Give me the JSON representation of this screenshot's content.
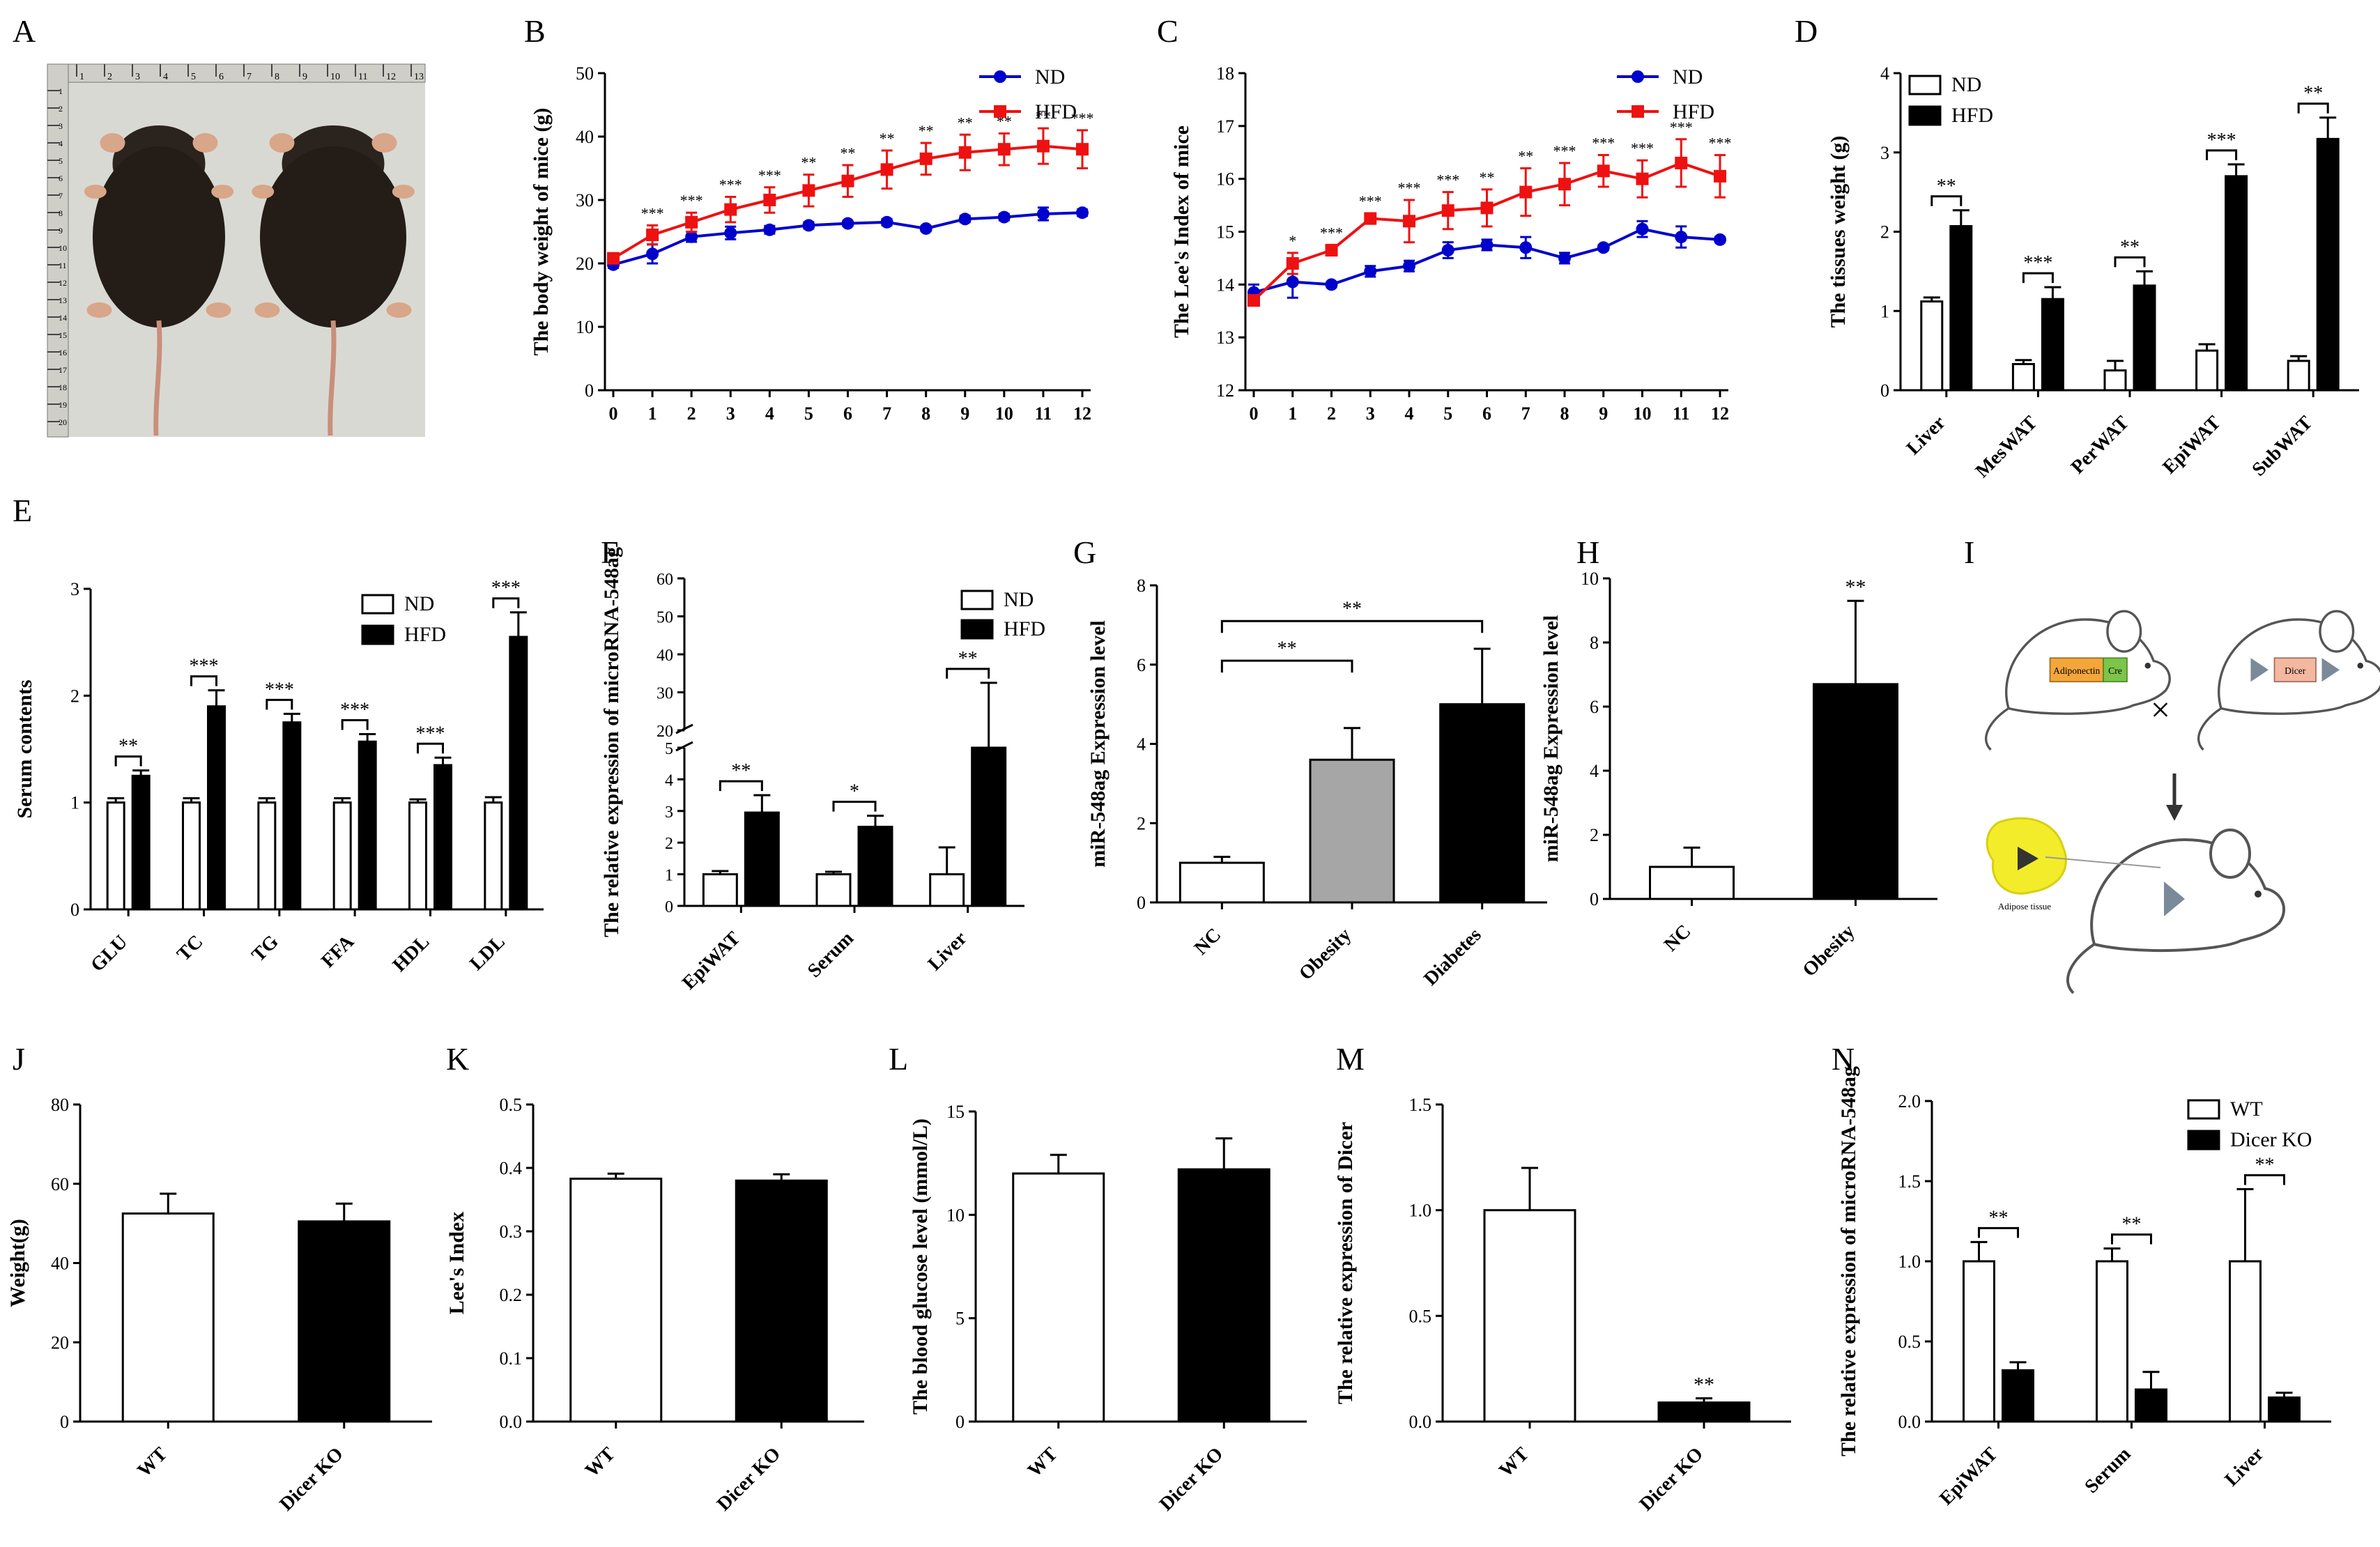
{
  "panel_letters": [
    "A",
    "B",
    "C",
    "D",
    "E",
    "F",
    "G",
    "H",
    "I",
    "J",
    "K",
    "L",
    "M",
    "N"
  ],
  "colors": {
    "nd": "#0000cc",
    "hfd": "#ee1111",
    "black": "#000000",
    "white": "#ffffff",
    "gray": "#a6a6a6"
  },
  "photo": {
    "ruler_left": [
      "1",
      "2",
      "3",
      "4",
      "5",
      "6",
      "7",
      "8",
      "9",
      "10",
      "11",
      "12",
      "13",
      "14",
      "15",
      "16",
      "17",
      "18",
      "19",
      "20"
    ],
    "ruler_top": [
      "1",
      "2",
      "3",
      "4",
      "5",
      "6",
      "7",
      "8",
      "9",
      "10",
      "11",
      "12",
      "13"
    ]
  },
  "schematic": {
    "transgene_a": "Adiponectin",
    "transgene_b": "Cre",
    "floxed_gene": "Dicer",
    "cross_symbol": "×",
    "tissue_label": "Adipose tissue"
  },
  "chart_data": [
    {
      "panel": "B",
      "type": "line",
      "x": [
        0,
        1,
        2,
        3,
        4,
        5,
        6,
        7,
        8,
        9,
        10,
        11,
        12
      ],
      "xticks": [
        "0",
        "1",
        "2",
        "3",
        "4",
        "5",
        "6",
        "7",
        "8",
        "9",
        "10",
        "11",
        "12"
      ],
      "ylabel": "The body weight of mice (g)",
      "ylim": [
        0,
        50
      ],
      "yticks": [
        "0",
        "10",
        "20",
        "30",
        "40",
        "50"
      ],
      "series": [
        {
          "name": "ND",
          "values": [
            19.8,
            21.5,
            24.2,
            24.8,
            25.3,
            26,
            26.3,
            26.5,
            25.5,
            27,
            27.3,
            27.8,
            28
          ],
          "errors": [
            0.5,
            1.5,
            0.8,
            1,
            0.6,
            0.5,
            0.4,
            0.5,
            0.4,
            0.5,
            0.5,
            1,
            0.5
          ]
        },
        {
          "name": "HFD",
          "values": [
            20.8,
            24.5,
            26.5,
            28.5,
            30,
            31.5,
            33,
            34.8,
            36.5,
            37.5,
            38,
            38.5,
            38
          ],
          "errors": [
            0.5,
            1.5,
            1.5,
            2,
            2,
            2.5,
            2.5,
            3,
            2.5,
            2.8,
            2.5,
            2.8,
            3
          ]
        }
      ],
      "annotations": [
        "",
        "***",
        "***",
        "***",
        "***",
        "**",
        "**",
        "**",
        "**",
        "**",
        "**",
        "**",
        "***"
      ]
    },
    {
      "panel": "C",
      "type": "line",
      "x": [
        0,
        1,
        2,
        3,
        4,
        5,
        6,
        7,
        8,
        9,
        10,
        11,
        12
      ],
      "xticks": [
        "0",
        "1",
        "2",
        "3",
        "4",
        "5",
        "6",
        "7",
        "8",
        "9",
        "10",
        "11",
        "12"
      ],
      "ylabel": "The Lee's Index of mice",
      "ylim": [
        12,
        18
      ],
      "yticks": [
        "12",
        "13",
        "14",
        "15",
        "16",
        "17",
        "18"
      ],
      "series": [
        {
          "name": "ND",
          "values": [
            13.85,
            14.05,
            14.0,
            14.25,
            14.35,
            14.65,
            14.75,
            14.7,
            14.5,
            14.7,
            15.05,
            14.9,
            14.85
          ],
          "errors": [
            0.15,
            0.3,
            0.05,
            0.1,
            0.1,
            0.15,
            0.1,
            0.2,
            0.1,
            0.05,
            0.15,
            0.2,
            0.05
          ]
        },
        {
          "name": "HFD",
          "values": [
            13.7,
            14.4,
            14.65,
            15.25,
            15.2,
            15.4,
            15.45,
            15.75,
            15.9,
            16.15,
            16.0,
            16.3,
            16.05
          ],
          "errors": [
            0.1,
            0.2,
            0.1,
            0.1,
            0.4,
            0.35,
            0.35,
            0.45,
            0.4,
            0.3,
            0.35,
            0.45,
            0.4
          ]
        }
      ],
      "annotations": [
        "",
        "*",
        "***",
        "***",
        "***",
        "***",
        "**",
        "**",
        "***",
        "***",
        "***",
        "***",
        "***"
      ]
    },
    {
      "panel": "D",
      "type": "bar",
      "categories": [
        "Liver",
        "MesWAT",
        "PerWAT",
        "EpiWAT",
        "SubWAT"
      ],
      "ylabel": "The tissues weight (g)",
      "ylim": [
        0,
        4
      ],
      "yticks": [
        "0",
        "1",
        "2",
        "3",
        "4"
      ],
      "series": [
        {
          "name": "ND",
          "values": [
            1.12,
            0.33,
            0.25,
            0.5,
            0.37
          ],
          "errors": [
            0.05,
            0.05,
            0.12,
            0.08,
            0.06
          ]
        },
        {
          "name": "HFD",
          "values": [
            2.07,
            1.15,
            1.32,
            2.7,
            3.17
          ],
          "errors": [
            0.2,
            0.15,
            0.18,
            0.15,
            0.27
          ]
        }
      ],
      "annotations": [
        "**",
        "***",
        "**",
        "***",
        "**"
      ]
    },
    {
      "panel": "E",
      "type": "bar",
      "categories": [
        "GLU",
        "TC",
        "TG",
        "FFA",
        "HDL",
        "LDL"
      ],
      "ylabel": "Serum contents",
      "ylim": [
        0,
        3
      ],
      "yticks": [
        "0",
        "1",
        "2",
        "3"
      ],
      "series": [
        {
          "name": "ND",
          "values": [
            1,
            1,
            1,
            1,
            1,
            1
          ],
          "errors": [
            0.04,
            0.04,
            0.04,
            0.04,
            0.03,
            0.05
          ]
        },
        {
          "name": "HFD",
          "values": [
            1.25,
            1.9,
            1.75,
            1.57,
            1.35,
            2.55
          ],
          "errors": [
            0.05,
            0.15,
            0.08,
            0.07,
            0.07,
            0.23
          ]
        }
      ],
      "annotations": [
        "**",
        "***",
        "***",
        "***",
        "***",
        "***"
      ]
    },
    {
      "panel": "F",
      "type": "bar",
      "categories": [
        "EpiWAT",
        "Serum",
        "Liver"
      ],
      "ylabel": "The relative expression of microRNA-548ag",
      "axis_break": [
        5,
        20
      ],
      "ylim": [
        0,
        60
      ],
      "yticks": [
        "0",
        "1",
        "2",
        "3",
        "4",
        "5",
        "20",
        "30",
        "40",
        "50",
        "60"
      ],
      "series": [
        {
          "name": "ND",
          "values": [
            1,
            1,
            1
          ],
          "errors": [
            0.1,
            0.08,
            0.85
          ]
        },
        {
          "name": "HFD",
          "values": [
            2.95,
            2.5,
            5
          ],
          "errors": [
            0.55,
            0.35,
            27.5
          ]
        }
      ],
      "annotations": [
        "**",
        "*",
        "**"
      ]
    },
    {
      "panel": "G",
      "type": "bar",
      "categories": [
        "NC",
        "Obesity",
        "Diabetes"
      ],
      "ylabel": "miR-548ag Expression level",
      "ylim": [
        0,
        8
      ],
      "yticks": [
        "0",
        "2",
        "4",
        "6",
        "8"
      ],
      "series": [
        {
          "name": "miR-548ag",
          "values": [
            1,
            3.6,
            5
          ],
          "errors": [
            0.15,
            0.8,
            1.4
          ]
        }
      ],
      "annotations": [
        "**",
        "**"
      ]
    },
    {
      "panel": "H",
      "type": "bar",
      "categories": [
        "NC",
        "Obesity"
      ],
      "ylabel": "miR-548ag Expression level",
      "ylim": [
        0,
        10
      ],
      "yticks": [
        "0",
        "2",
        "4",
        "6",
        "8",
        "10"
      ],
      "series": [
        {
          "name": "miR-548ag",
          "values": [
            1,
            6.7
          ],
          "errors": [
            0.6,
            2.6
          ]
        }
      ],
      "annotations": [
        "",
        "**"
      ]
    },
    {
      "panel": "J",
      "type": "bar",
      "categories": [
        "WT",
        "Dicer KO"
      ],
      "ylabel": "Weight(g)",
      "ylim": [
        0,
        80
      ],
      "yticks": [
        "0",
        "20",
        "40",
        "60",
        "80"
      ],
      "series": [
        {
          "name": "value",
          "values": [
            52.5,
            50.5
          ],
          "errors": [
            5,
            4.5
          ]
        }
      ]
    },
    {
      "panel": "K",
      "type": "bar",
      "categories": [
        "WT",
        "Dicer KO"
      ],
      "ylabel": "Lee's Index",
      "ylim": [
        0,
        0.5
      ],
      "yticks": [
        "0.0",
        "0.1",
        "0.2",
        "0.3",
        "0.4",
        "0.5"
      ],
      "series": [
        {
          "name": "value",
          "values": [
            0.383,
            0.38
          ],
          "errors": [
            0.008,
            0.01
          ]
        }
      ]
    },
    {
      "panel": "L",
      "type": "bar",
      "categories": [
        "WT",
        "Dicer KO"
      ],
      "ylabel": "The blood glucose level (mmol/L)",
      "ylim": [
        0,
        15
      ],
      "yticks": [
        "0",
        "5",
        "10",
        "15"
      ],
      "series": [
        {
          "name": "value",
          "values": [
            12,
            12.2
          ],
          "errors": [
            0.9,
            1.5
          ]
        }
      ]
    },
    {
      "panel": "M",
      "type": "bar",
      "categories": [
        "WT",
        "Dicer KO"
      ],
      "ylabel": "The relative expression of Dicer",
      "ylim": [
        0,
        1.5
      ],
      "yticks": [
        "0.0",
        "0.5",
        "1.0",
        "1.5"
      ],
      "series": [
        {
          "name": "value",
          "values": [
            1.0,
            0.09
          ],
          "errors": [
            0.2,
            0.02
          ]
        }
      ],
      "annotations": [
        "",
        "**"
      ]
    },
    {
      "panel": "N",
      "type": "bar",
      "categories": [
        "EpiWAT",
        "Serum",
        "Liver"
      ],
      "ylabel": "The relative expression of microRNA-548ag",
      "ylim": [
        0,
        2.0
      ],
      "yticks": [
        "0.0",
        "0.5",
        "1.0",
        "1.5",
        "2.0"
      ],
      "series": [
        {
          "name": "WT",
          "values": [
            1.0,
            1.0,
            1.0
          ],
          "errors": [
            0.12,
            0.08,
            0.45
          ]
        },
        {
          "name": "Dicer KO",
          "values": [
            0.32,
            0.2,
            0.15
          ],
          "errors": [
            0.05,
            0.11,
            0.03
          ]
        }
      ],
      "annotations": [
        "**",
        "**",
        "**"
      ]
    }
  ]
}
